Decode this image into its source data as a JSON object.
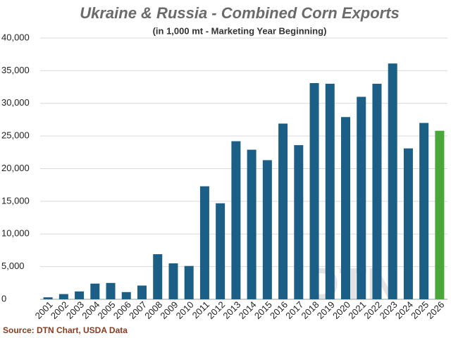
{
  "chart_data": {
    "type": "bar",
    "title": "Ukraine & Russia - Combined Corn Exports",
    "subtitle": "(in 1,000 mt - Marketing Year Beginning)",
    "source": "Source: DTN Chart, USDA Data",
    "watermark": "DTN",
    "categories": [
      "2001",
      "2002",
      "2003",
      "2004",
      "2005",
      "2006",
      "2007",
      "2008",
      "2009",
      "2010",
      "2011",
      "2012",
      "2013",
      "2014",
      "2015",
      "2016",
      "2017",
      "2018",
      "2019",
      "2020",
      "2021",
      "2022",
      "2023",
      "2024",
      "2025",
      "2026"
    ],
    "values": [
      300,
      800,
      1200,
      2400,
      2500,
      1100,
      2100,
      6900,
      5500,
      5100,
      17300,
      14700,
      24200,
      22900,
      21300,
      26900,
      23600,
      33100,
      33000,
      27900,
      31000,
      33000,
      36100,
      23100,
      27000,
      25800
    ],
    "colors": [
      "#1c5f86",
      "#1c5f86",
      "#1c5f86",
      "#1c5f86",
      "#1c5f86",
      "#1c5f86",
      "#1c5f86",
      "#1c5f86",
      "#1c5f86",
      "#1c5f86",
      "#1c5f86",
      "#1c5f86",
      "#1c5f86",
      "#1c5f86",
      "#1c5f86",
      "#1c5f86",
      "#1c5f86",
      "#1c5f86",
      "#1c5f86",
      "#1c5f86",
      "#1c5f86",
      "#1c5f86",
      "#1c5f86",
      "#1c5f86",
      "#1c5f86",
      "#4aa83a"
    ],
    "ylim": [
      0,
      40000
    ],
    "yticks": [
      0,
      {
        "value": 5000,
        "label": "5,000"
      },
      {
        "value": 10000,
        "label": "10,000"
      },
      {
        "value": 15000,
        "label": "15,000"
      },
      {
        "value": 20000,
        "label": "20,000"
      },
      {
        "value": 25000,
        "label": "25,000"
      },
      {
        "value": 30000,
        "label": "30,000"
      },
      {
        "value": 35000,
        "label": "35,000"
      },
      {
        "value": 40000,
        "label": "40,000"
      }
    ],
    "grid": true
  }
}
